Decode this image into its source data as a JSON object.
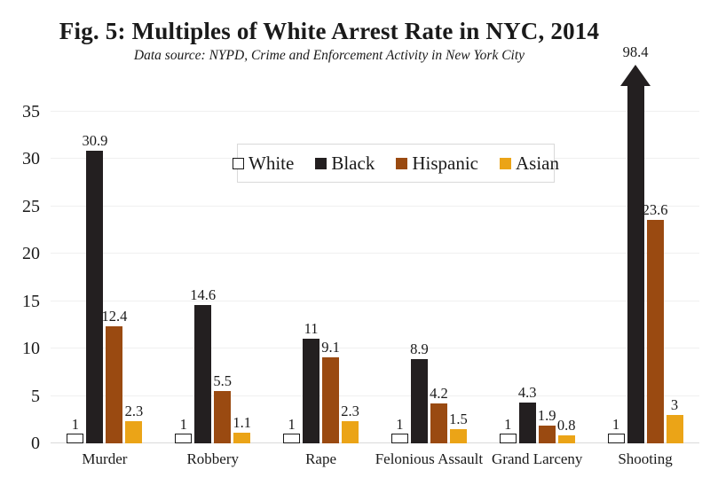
{
  "chart_data": {
    "type": "bar",
    "title": "Fig. 5: Multiples of White Arrest Rate in NYC, 2014",
    "subtitle": "Data source: NYPD, Crime and Enforcement Activity in New York City",
    "categories": [
      "Murder",
      "Robbery",
      "Rape",
      "Felonious Assault",
      "Grand Larceny",
      "Shooting"
    ],
    "series": [
      {
        "name": "White",
        "color": "#ffffff",
        "border_color": "#1a1a1a",
        "values": [
          1,
          1,
          1,
          1,
          1,
          1
        ]
      },
      {
        "name": "Black",
        "color": "#231f20",
        "values": [
          30.9,
          14.6,
          11,
          8.9,
          4.3,
          98.4
        ]
      },
      {
        "name": "Hispanic",
        "color": "#9a4a11",
        "values": [
          12.4,
          5.5,
          9.1,
          4.2,
          1.9,
          23.6
        ]
      },
      {
        "name": "Asian",
        "color": "#eba417",
        "values": [
          2.3,
          1.1,
          2.3,
          1.5,
          0.8,
          3
        ]
      }
    ],
    "ylim": [
      0,
      35
    ],
    "yticks": [
      0,
      5,
      10,
      15,
      20,
      25,
      30,
      35
    ],
    "grid": true,
    "legend": {
      "position": "top-center-inside",
      "entries": [
        "White",
        "Black",
        "Hispanic",
        "Asian"
      ]
    },
    "overflow_arrow": {
      "category": "Shooting",
      "series": "Black",
      "value": 98.4
    },
    "colors": {
      "gridline": "#f0f0f0",
      "axis_line": "#d9d9d9",
      "text": "#1a1a1a",
      "background": "#ffffff"
    }
  }
}
